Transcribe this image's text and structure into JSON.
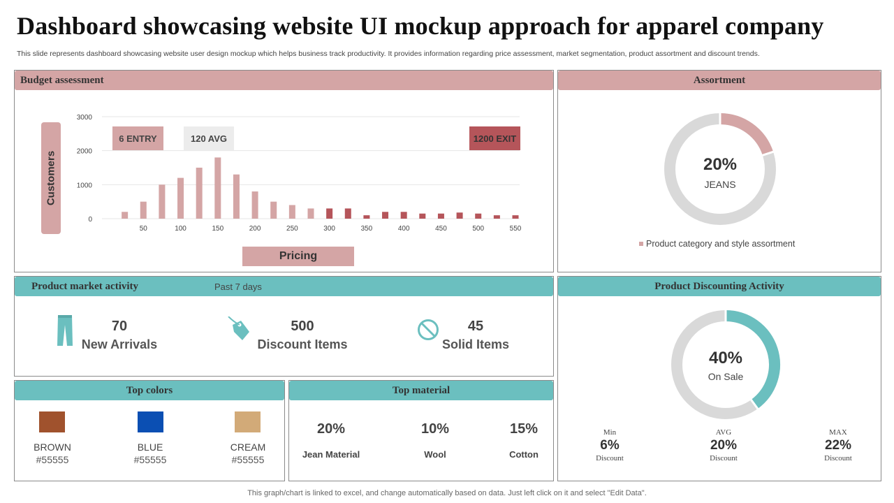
{
  "title": "Dashboard showcasing website UI mockup approach for apparel company",
  "subtitle": "This slide represents dashboard showcasing website user design mockup which helps business track productivity. It provides information regarding price assessment, market segmentation, product assortment and discount trends.",
  "footer": "This graph/chart is linked to excel, and change automatically based on data. Just left click on it and select \"Edit Data\".",
  "budget": {
    "header": "Budget assessment",
    "ylabel": "Customers",
    "xlabel": "Pricing",
    "entry_tag": "6 ENTRY",
    "avg_tag": "120 AVG",
    "exit_tag": "1200 EXIT"
  },
  "chart_data": {
    "type": "bar",
    "title": "",
    "xlabel": "Pricing",
    "ylabel": "Customers",
    "ylim": [
      0,
      3000
    ],
    "yticks": [
      0,
      1000,
      2000,
      3000
    ],
    "xtick_labels": [
      "50",
      "100",
      "150",
      "200",
      "250",
      "300",
      "350",
      "400",
      "450",
      "500",
      "550"
    ],
    "x": [
      25,
      50,
      75,
      100,
      125,
      150,
      175,
      200,
      225,
      250,
      275,
      300,
      325,
      350,
      375,
      400,
      425,
      450,
      475,
      500,
      525,
      550
    ],
    "values": [
      200,
      500,
      1000,
      1200,
      1500,
      1800,
      1300,
      800,
      500,
      400,
      300,
      300,
      300,
      100,
      200,
      200,
      150,
      150,
      180,
      150,
      100,
      100
    ],
    "colors": {
      "light": "#d4a5a5",
      "dark": "#b5555a"
    },
    "dark_from_index": 11,
    "grid": true
  },
  "assortment": {
    "header": "Assortment",
    "percent": "20%",
    "label": "JEANS",
    "value": 0.2,
    "legend": "Product category and style assortment",
    "fill_color": "#d4a5a5",
    "track_color": "#d9d9d9"
  },
  "market": {
    "header": "Product market activity",
    "period": "Past 7 days",
    "stats": [
      {
        "value": "70",
        "label": "New Arrivals",
        "icon": "jeans-icon"
      },
      {
        "value": "500",
        "label": "Discount Items",
        "icon": "price-tag-icon"
      },
      {
        "value": "45",
        "label": "Solid Items",
        "icon": "no-sign-icon"
      }
    ],
    "icon_color": "#6bbfbf"
  },
  "discounting": {
    "header": "Product Discounting Activity",
    "percent": "40%",
    "label": "On Sale",
    "value": 0.4,
    "fill_color": "#6bbfbf",
    "track_color": "#d9d9d9",
    "stats": [
      {
        "head": "Min",
        "value": "6%",
        "sub": "Discount"
      },
      {
        "head": "AVG",
        "value": "20%",
        "sub": "Discount"
      },
      {
        "head": "MAX",
        "value": "22%",
        "sub": "Discount"
      }
    ]
  },
  "top_colors": {
    "header": "Top colors",
    "items": [
      {
        "name": "BROWN",
        "code": "#55555",
        "swatch": "#a0522d"
      },
      {
        "name": "BLUE",
        "code": "#55555",
        "swatch": "#0b4fb3"
      },
      {
        "name": "CREAM",
        "code": "#55555",
        "swatch": "#d2aa78"
      }
    ]
  },
  "top_material": {
    "header": "Top material",
    "items": [
      {
        "percent": "20%",
        "label": "Jean Material"
      },
      {
        "percent": "10%",
        "label": "Wool"
      },
      {
        "percent": "15%",
        "label": "Cotton"
      }
    ]
  }
}
